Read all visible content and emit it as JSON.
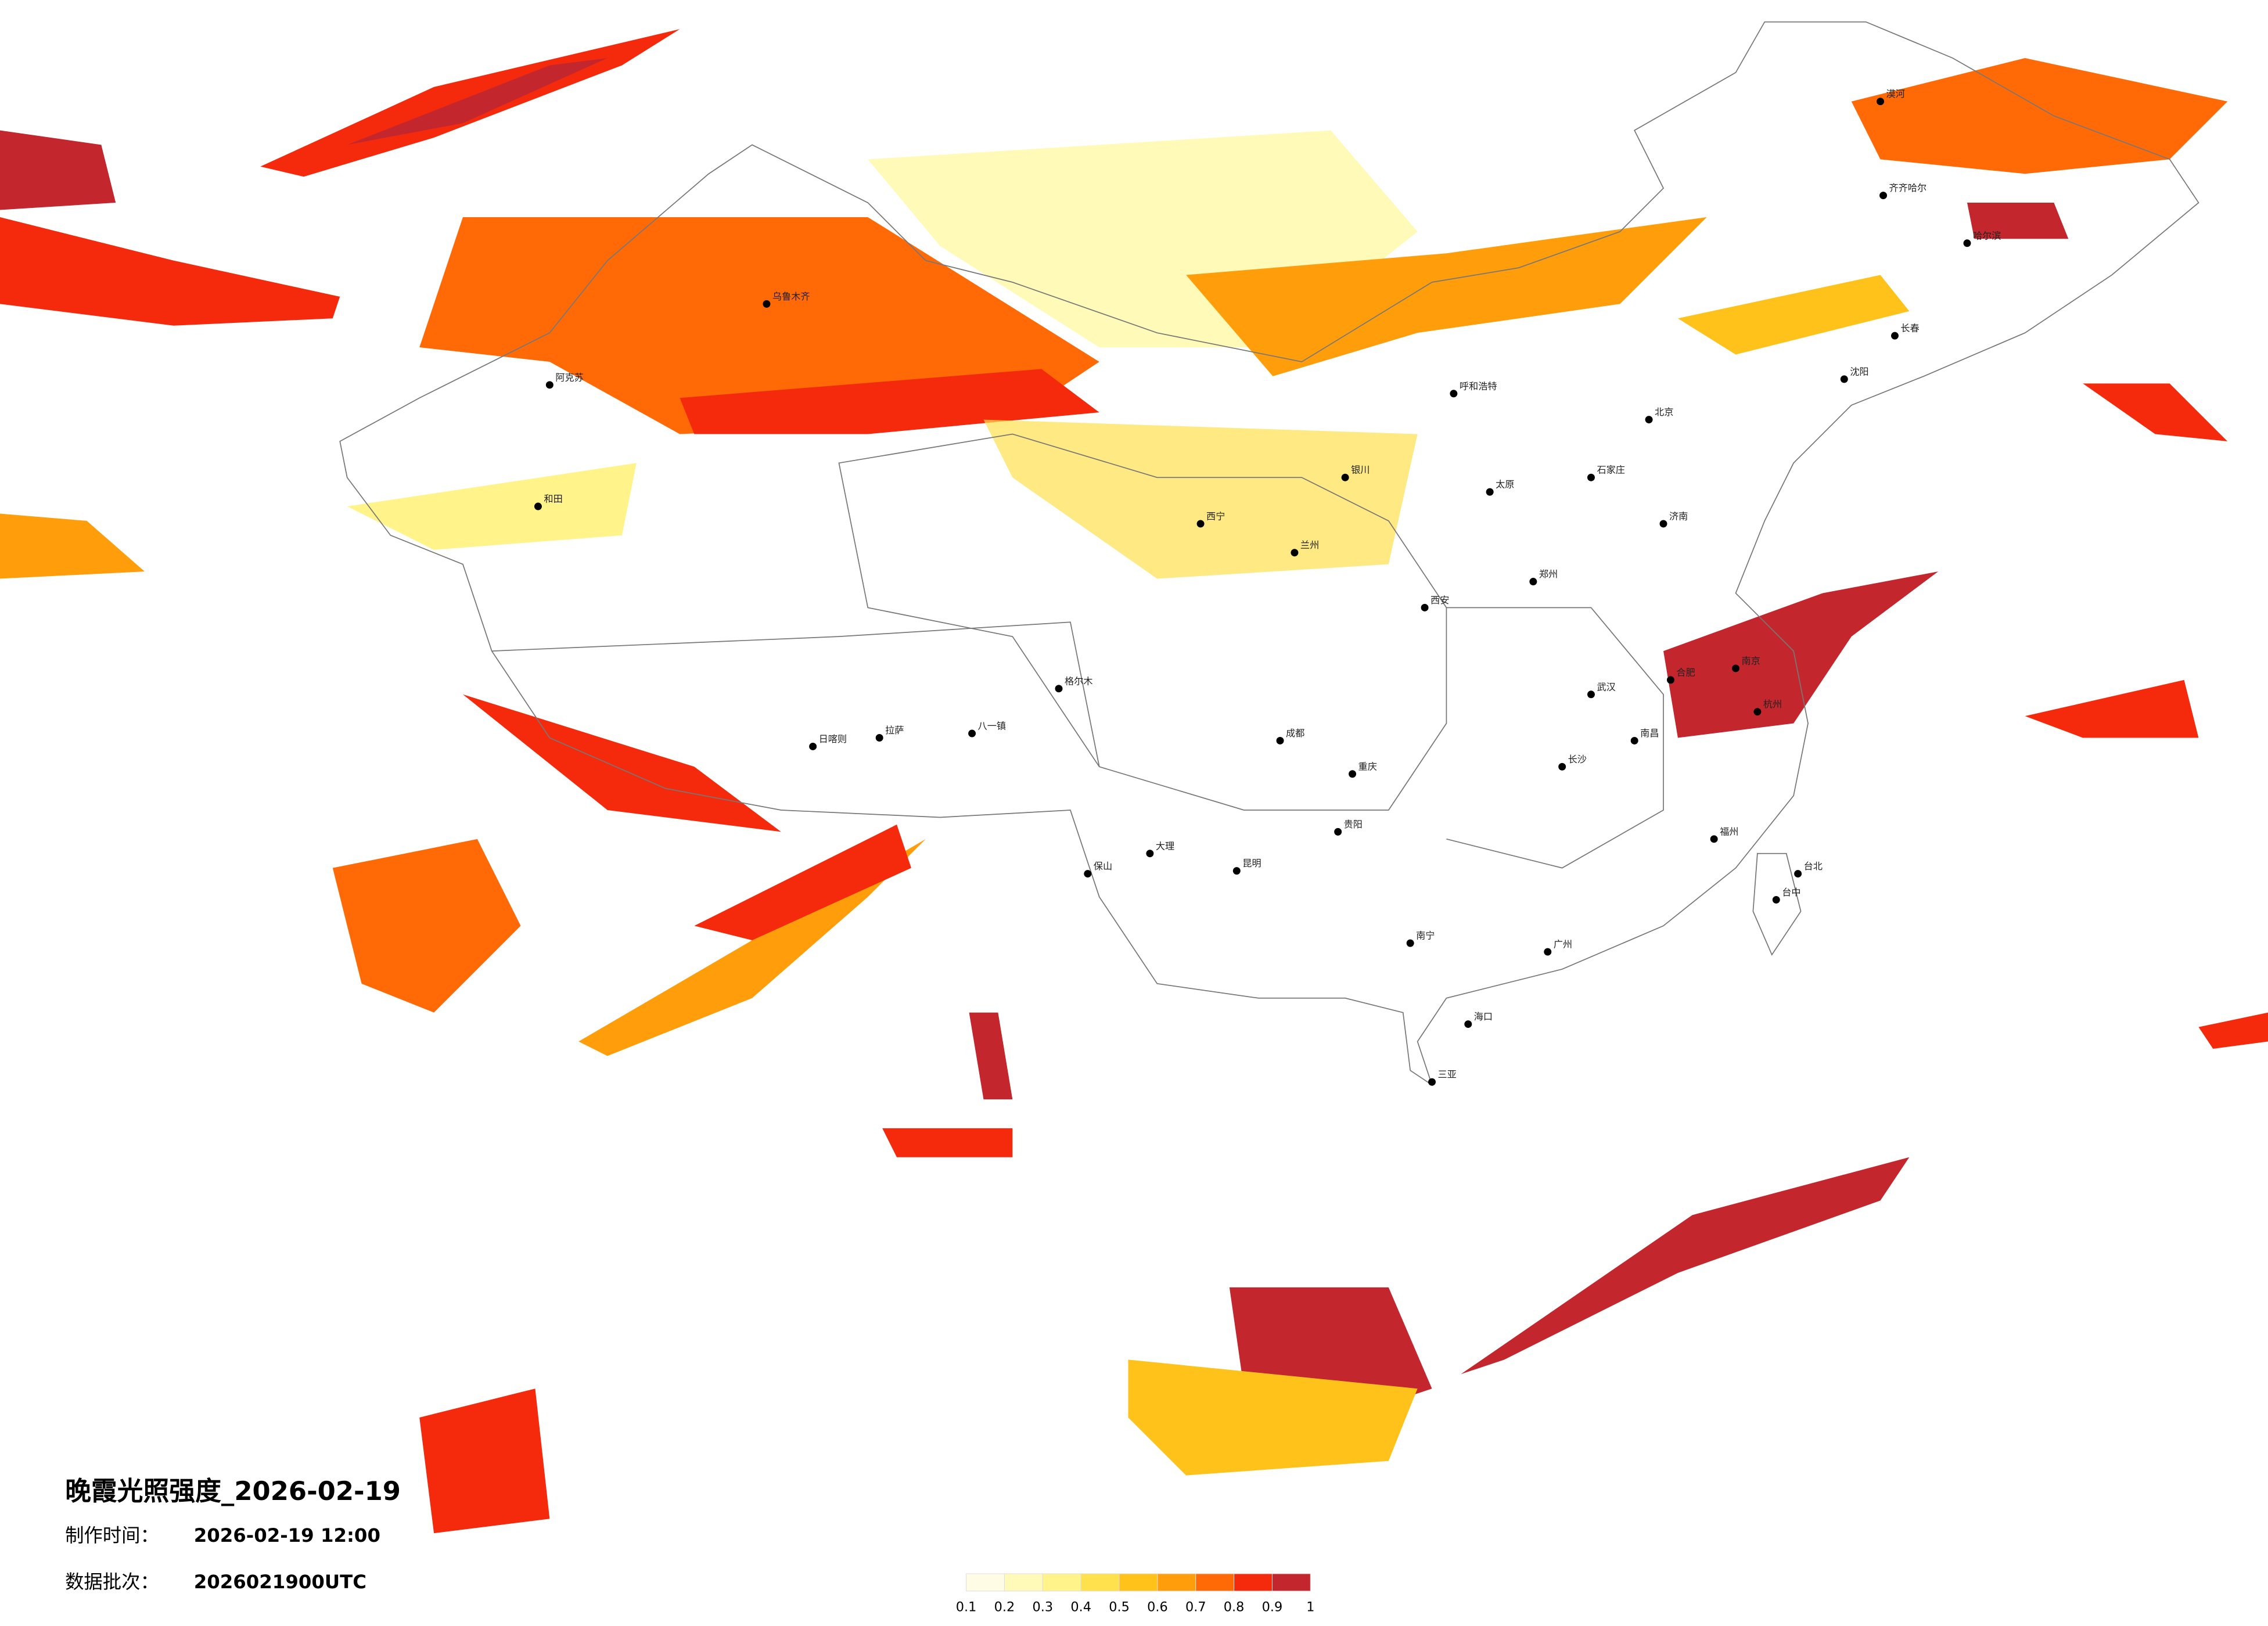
{
  "title": "晚霞光照强度_2026-02-19",
  "made_label": "制作时间：",
  "made_time": "2026-02-19 12:00",
  "batch_label": "数据批次：",
  "batch": "2026021900UTC",
  "legend": {
    "colors": [
      "#fffce6",
      "#fffab8",
      "#fff38a",
      "#ffe04d",
      "#ffc21a",
      "#ff9d0a",
      "#ff6a06",
      "#f52a0c",
      "#c4262e"
    ],
    "ticks": [
      0.1,
      0.2,
      0.3,
      0.4,
      0.5,
      0.6,
      0.7,
      0.8,
      0.9,
      1
    ]
  },
  "cities": [
    "北京",
    "呼和浩特",
    "石家庄",
    "济南",
    "郑州",
    "西安",
    "兰州",
    "西宁",
    "银川",
    "成都",
    "重庆",
    "昆明",
    "贵阳",
    "南宁",
    "广州",
    "海口",
    "三亚",
    "长沙",
    "南昌",
    "福州",
    "台北",
    "台中",
    "杭州",
    "南京",
    "合肥",
    "武汉",
    "太原",
    "沈阳",
    "长春",
    "哈尔滨",
    "乌鲁木齐",
    "拉萨",
    "日喀则",
    "八一镇",
    "阿克苏",
    "和田",
    "格尔木",
    "大理",
    "保山",
    "齐齐哈尔",
    "漠河"
  ]
}
